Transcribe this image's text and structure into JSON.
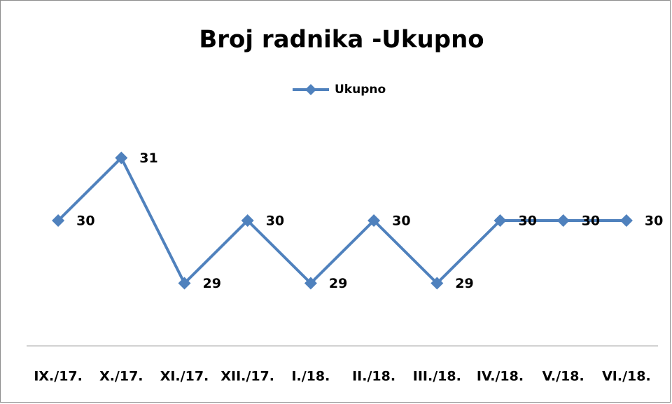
{
  "chart_data": {
    "type": "line",
    "title": "Broj radnika -Ukupno",
    "categories": [
      "IX./17.",
      "X./17.",
      "XI./17.",
      "XII./17.",
      "I./18.",
      "II./18.",
      "III./18.",
      "IV./18.",
      "V./18.",
      "VI./18."
    ],
    "series": [
      {
        "name": "Ukupno",
        "color": "#4f81bd",
        "values": [
          30,
          31,
          29,
          30,
          29,
          30,
          29,
          30,
          30,
          30
        ]
      }
    ],
    "ylim": [
      28,
      32
    ],
    "legend": "top",
    "data_labels": true
  }
}
